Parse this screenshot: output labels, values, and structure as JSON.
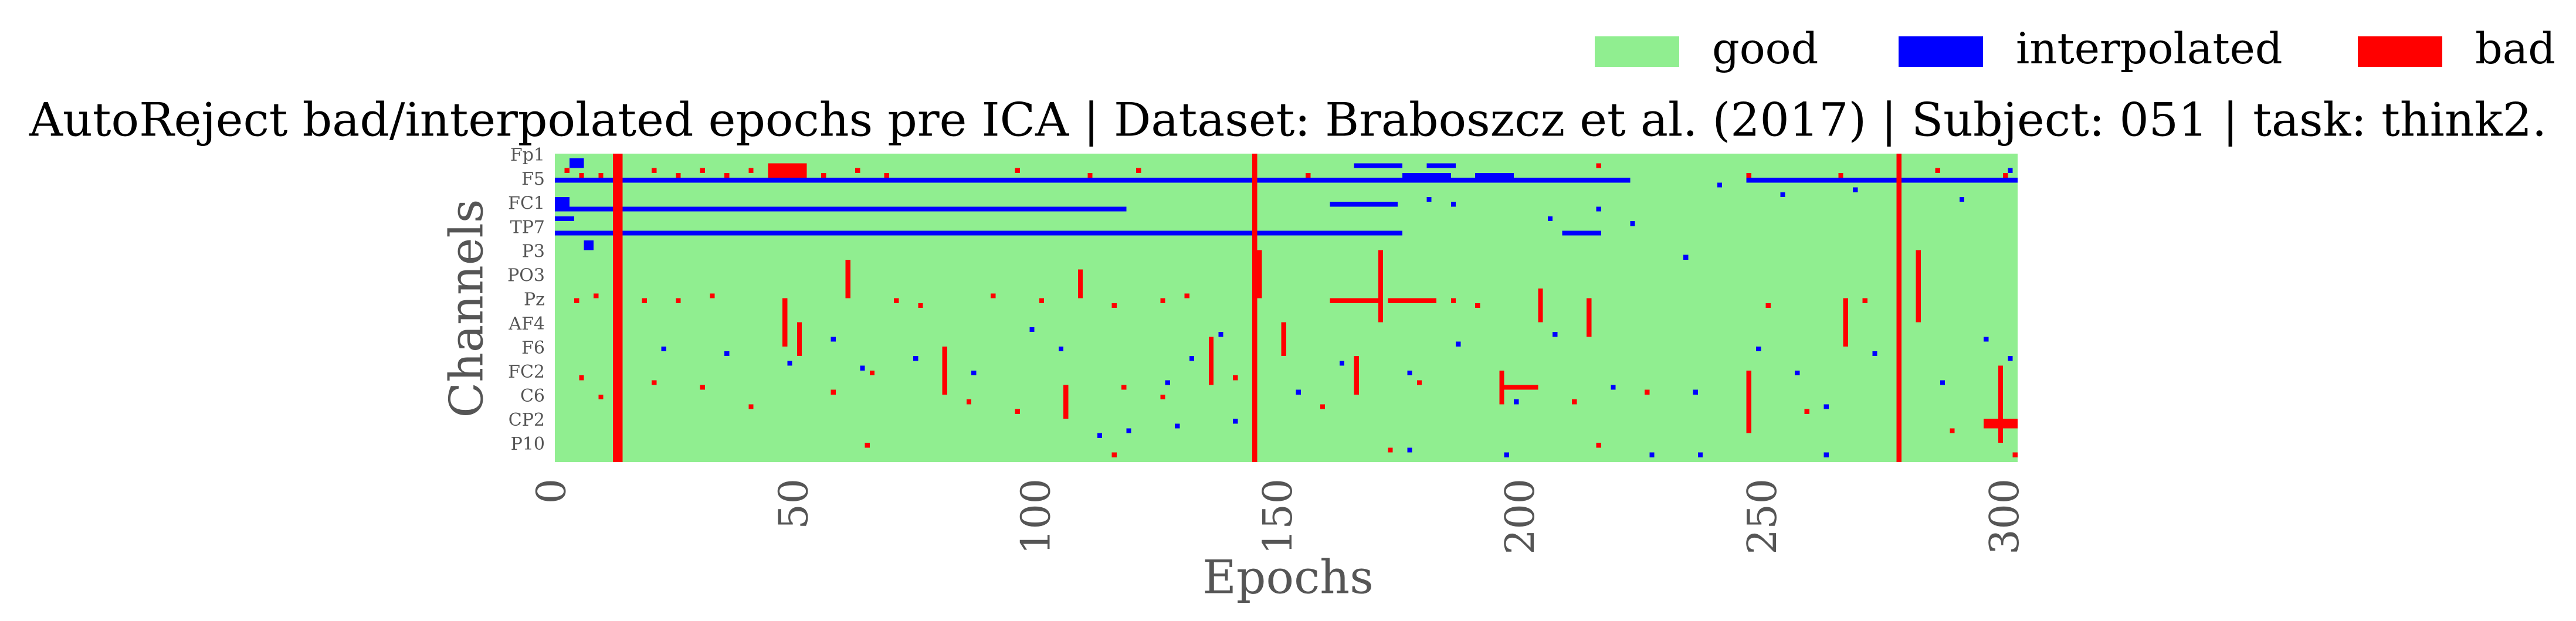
{
  "chart_data": {
    "type": "heatmap",
    "title": "AutoReject bad/interpolated epochs pre ICA | Dataset: Braboszcz et al. (2017) | Subject: 051 | task: think2.",
    "xlabel": "Epochs",
    "ylabel": "Channels",
    "legend": [
      {
        "name": "good",
        "color": "#90ee90"
      },
      {
        "name": "interpolated",
        "color": "#0000ff"
      },
      {
        "name": "bad",
        "color": "#ff0000"
      }
    ],
    "xlim": [
      0,
      302
    ],
    "ylim": [
      64,
      0
    ],
    "xticks": [
      0,
      50,
      100,
      150,
      200,
      250,
      300
    ],
    "yticks": [
      {
        "value": 0.5,
        "label": "Fp1"
      },
      {
        "value": 5.5,
        "label": "F5"
      },
      {
        "value": 10.5,
        "label": "FC1"
      },
      {
        "value": 15.5,
        "label": "TP7"
      },
      {
        "value": 20.5,
        "label": "P3"
      },
      {
        "value": 25.5,
        "label": "PO3"
      },
      {
        "value": 30.5,
        "label": "Pz"
      },
      {
        "value": 35.5,
        "label": "AF4"
      },
      {
        "value": 40.5,
        "label": "F6"
      },
      {
        "value": 45.5,
        "label": "FC2"
      },
      {
        "value": 50.5,
        "label": "C6"
      },
      {
        "value": 55.5,
        "label": "CP2"
      },
      {
        "value": 60.5,
        "label": "P10"
      }
    ],
    "blocks": [
      [
        0,
        302,
        0,
        64,
        0
      ],
      [
        0,
        222,
        5,
        6,
        1
      ],
      [
        246,
        302,
        5,
        6,
        1
      ],
      [
        0,
        118,
        11,
        12,
        1
      ],
      [
        0,
        175,
        16,
        17,
        1
      ],
      [
        0,
        3,
        9,
        11,
        1
      ],
      [
        0,
        4,
        13,
        14,
        1
      ],
      [
        6,
        8,
        18,
        20,
        1
      ],
      [
        3,
        6,
        1,
        3,
        1
      ],
      [
        165,
        175,
        2,
        3,
        1
      ],
      [
        180,
        186,
        2,
        3,
        1
      ],
      [
        160,
        174,
        10,
        11,
        1
      ],
      [
        175,
        185,
        4,
        5,
        1
      ],
      [
        190,
        198,
        4,
        5,
        1
      ],
      [
        208,
        216,
        16,
        17,
        1
      ],
      [
        255,
        262,
        5,
        6,
        1
      ],
      [
        22,
        23,
        40,
        41,
        1
      ],
      [
        35,
        36,
        41,
        42,
        1
      ],
      [
        48,
        49,
        43,
        44,
        1
      ],
      [
        57,
        58,
        38,
        39,
        1
      ],
      [
        63,
        64,
        44,
        45,
        1
      ],
      [
        74,
        75,
        42,
        43,
        1
      ],
      [
        86,
        87,
        45,
        46,
        1
      ],
      [
        98,
        99,
        36,
        37,
        1
      ],
      [
        104,
        105,
        40,
        41,
        1
      ],
      [
        126,
        127,
        47,
        48,
        1
      ],
      [
        131,
        132,
        42,
        43,
        1
      ],
      [
        137,
        138,
        37,
        38,
        1
      ],
      [
        153,
        154,
        49,
        50,
        1
      ],
      [
        162,
        163,
        43,
        44,
        1
      ],
      [
        176,
        177,
        45,
        46,
        1
      ],
      [
        186,
        187,
        39,
        40,
        1
      ],
      [
        198,
        199,
        51,
        52,
        1
      ],
      [
        206,
        207,
        37,
        38,
        1
      ],
      [
        218,
        219,
        48,
        49,
        1
      ],
      [
        233,
        234,
        21,
        22,
        1
      ],
      [
        235,
        236,
        49,
        50,
        1
      ],
      [
        248,
        249,
        40,
        41,
        1
      ],
      [
        256,
        257,
        45,
        46,
        1
      ],
      [
        262,
        263,
        52,
        53,
        1
      ],
      [
        272,
        273,
        41,
        42,
        1
      ],
      [
        286,
        287,
        47,
        48,
        1
      ],
      [
        295,
        296,
        38,
        39,
        1
      ],
      [
        300,
        301,
        42,
        43,
        1
      ],
      [
        112,
        113,
        58,
        59,
        1
      ],
      [
        118,
        119,
        57,
        58,
        1
      ],
      [
        128,
        129,
        56,
        57,
        1
      ],
      [
        140,
        141,
        55,
        56,
        1
      ],
      [
        176,
        177,
        61,
        62,
        1
      ],
      [
        196,
        197,
        62,
        63,
        1
      ],
      [
        226,
        227,
        62,
        63,
        1
      ],
      [
        236,
        237,
        62,
        63,
        1
      ],
      [
        262,
        263,
        62,
        63,
        1
      ],
      [
        180,
        181,
        9,
        10,
        1
      ],
      [
        185,
        186,
        10,
        11,
        1
      ],
      [
        205,
        206,
        13,
        14,
        1
      ],
      [
        215,
        216,
        11,
        12,
        1
      ],
      [
        222,
        223,
        14,
        15,
        1
      ],
      [
        240,
        241,
        6,
        7,
        1
      ],
      [
        253,
        254,
        8,
        9,
        1
      ],
      [
        268,
        269,
        7,
        8,
        1
      ],
      [
        290,
        291,
        9,
        10,
        1
      ],
      [
        300,
        301,
        3,
        4,
        1
      ],
      [
        12,
        14,
        0,
        64,
        2
      ],
      [
        144,
        145,
        0,
        64,
        2
      ],
      [
        277,
        278,
        0,
        64,
        2
      ],
      [
        47,
        48,
        30,
        40,
        2
      ],
      [
        50,
        51,
        35,
        42,
        2
      ],
      [
        60,
        61,
        22,
        30,
        2
      ],
      [
        80,
        81,
        40,
        50,
        2
      ],
      [
        108,
        109,
        24,
        30,
        2
      ],
      [
        105,
        106,
        48,
        55,
        2
      ],
      [
        135,
        136,
        38,
        48,
        2
      ],
      [
        145,
        146,
        20,
        30,
        2
      ],
      [
        150,
        151,
        35,
        42,
        2
      ],
      [
        165,
        166,
        42,
        50,
        2
      ],
      [
        170,
        171,
        20,
        35,
        2
      ],
      [
        195,
        196,
        45,
        52,
        2
      ],
      [
        203,
        204,
        28,
        35,
        2
      ],
      [
        213,
        214,
        30,
        38,
        2
      ],
      [
        246,
        247,
        45,
        58,
        2
      ],
      [
        266,
        267,
        30,
        40,
        2
      ],
      [
        281,
        282,
        20,
        35,
        2
      ],
      [
        298,
        299,
        44,
        60,
        2
      ],
      [
        44,
        52,
        2,
        5,
        2
      ],
      [
        160,
        170,
        30,
        31,
        2
      ],
      [
        172,
        182,
        30,
        31,
        2
      ],
      [
        195,
        203,
        48,
        49,
        2
      ],
      [
        295,
        302,
        55,
        57,
        2
      ],
      [
        2,
        3,
        3,
        4,
        2
      ],
      [
        5,
        6,
        4,
        5,
        2
      ],
      [
        9,
        10,
        4,
        5,
        2
      ],
      [
        20,
        21,
        3,
        4,
        2
      ],
      [
        25,
        26,
        4,
        5,
        2
      ],
      [
        30,
        31,
        3,
        4,
        2
      ],
      [
        35,
        36,
        4,
        5,
        2
      ],
      [
        40,
        41,
        3,
        4,
        2
      ],
      [
        55,
        56,
        4,
        5,
        2
      ],
      [
        62,
        63,
        3,
        4,
        2
      ],
      [
        68,
        69,
        4,
        5,
        2
      ],
      [
        95,
        96,
        3,
        4,
        2
      ],
      [
        110,
        111,
        4,
        5,
        2
      ],
      [
        120,
        121,
        3,
        4,
        2
      ],
      [
        155,
        156,
        4,
        5,
        2
      ],
      [
        215,
        216,
        2,
        3,
        2
      ],
      [
        246,
        247,
        4,
        5,
        2
      ],
      [
        265,
        266,
        4,
        5,
        2
      ],
      [
        285,
        286,
        3,
        4,
        2
      ],
      [
        299,
        300,
        4,
        5,
        2
      ],
      [
        4,
        5,
        30,
        31,
        2
      ],
      [
        8,
        9,
        29,
        30,
        2
      ],
      [
        18,
        19,
        30,
        31,
        2
      ],
      [
        25,
        26,
        30,
        31,
        2
      ],
      [
        32,
        33,
        29,
        30,
        2
      ],
      [
        70,
        71,
        30,
        31,
        2
      ],
      [
        75,
        76,
        31,
        32,
        2
      ],
      [
        90,
        91,
        29,
        30,
        2
      ],
      [
        100,
        101,
        30,
        31,
        2
      ],
      [
        115,
        116,
        31,
        32,
        2
      ],
      [
        125,
        126,
        30,
        31,
        2
      ],
      [
        130,
        131,
        29,
        30,
        2
      ],
      [
        185,
        186,
        30,
        31,
        2
      ],
      [
        190,
        191,
        31,
        32,
        2
      ],
      [
        250,
        251,
        31,
        32,
        2
      ],
      [
        270,
        271,
        30,
        31,
        2
      ],
      [
        5,
        6,
        46,
        47,
        2
      ],
      [
        9,
        10,
        50,
        51,
        2
      ],
      [
        20,
        21,
        47,
        48,
        2
      ],
      [
        30,
        31,
        48,
        49,
        2
      ],
      [
        40,
        41,
        52,
        53,
        2
      ],
      [
        57,
        58,
        49,
        50,
        2
      ],
      [
        65,
        66,
        45,
        46,
        2
      ],
      [
        85,
        86,
        51,
        52,
        2
      ],
      [
        95,
        96,
        53,
        54,
        2
      ],
      [
        117,
        118,
        48,
        49,
        2
      ],
      [
        125,
        126,
        50,
        51,
        2
      ],
      [
        140,
        141,
        46,
        47,
        2
      ],
      [
        158,
        159,
        52,
        53,
        2
      ],
      [
        178,
        179,
        47,
        48,
        2
      ],
      [
        210,
        211,
        51,
        52,
        2
      ],
      [
        225,
        226,
        49,
        50,
        2
      ],
      [
        258,
        259,
        53,
        54,
        2
      ],
      [
        288,
        289,
        57,
        58,
        2
      ],
      [
        301,
        302,
        62,
        63,
        2
      ],
      [
        64,
        65,
        60,
        61,
        2
      ],
      [
        115,
        116,
        62,
        63,
        2
      ],
      [
        172,
        173,
        61,
        62,
        2
      ],
      [
        215,
        216,
        60,
        61,
        2
      ]
    ]
  }
}
